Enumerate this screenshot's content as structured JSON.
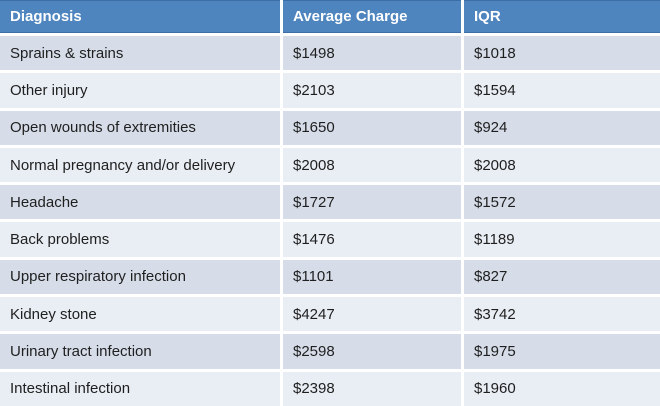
{
  "colors": {
    "header_bg": "#4e85bf",
    "header_text": "#ffffff",
    "row_band_dark": "#d6dde9",
    "row_band_light": "#e9edf4",
    "separator": "#ffffff",
    "cell_text": "#1f1f1f"
  },
  "header": {
    "columns": [
      "Diagnosis",
      "Average Charge",
      "IQR"
    ]
  },
  "rows": [
    {
      "diagnosis": "Sprains & strains",
      "average_charge": "$1498",
      "iqr": "$1018"
    },
    {
      "diagnosis": "Other injury",
      "average_charge": "$2103",
      "iqr": "$1594"
    },
    {
      "diagnosis": "Open wounds of extremities",
      "average_charge": "$1650",
      "iqr": "$924"
    },
    {
      "diagnosis": "Normal pregnancy and/or delivery",
      "average_charge": "$2008",
      "iqr": "$2008"
    },
    {
      "diagnosis": "Headache",
      "average_charge": "$1727",
      "iqr": "$1572"
    },
    {
      "diagnosis": "Back problems",
      "average_charge": "$1476",
      "iqr": "$1189"
    },
    {
      "diagnosis": "Upper respiratory infection",
      "average_charge": "$1101",
      "iqr": "$827"
    },
    {
      "diagnosis": "Kidney stone",
      "average_charge": "$4247",
      "iqr": "$3742"
    },
    {
      "diagnosis": "Urinary tract infection",
      "average_charge": "$2598",
      "iqr": "$1975"
    },
    {
      "diagnosis": "Intestinal infection",
      "average_charge": "$2398",
      "iqr": "$1960"
    }
  ],
  "chart_data": {
    "type": "table",
    "columns": [
      "Diagnosis",
      "Average Charge",
      "IQR"
    ],
    "rows": [
      [
        "Sprains & strains",
        "$1498",
        "$1018"
      ],
      [
        "Other injury",
        "$2103",
        "$1594"
      ],
      [
        "Open wounds of extremities",
        "$1650",
        "$924"
      ],
      [
        "Normal pregnancy and/or delivery",
        "$2008",
        "$2008"
      ],
      [
        "Headache",
        "$1727",
        "$1572"
      ],
      [
        "Back problems",
        "$1476",
        "$1189"
      ],
      [
        "Upper respiratory infection",
        "$1101",
        "$827"
      ],
      [
        "Kidney stone",
        "$4247",
        "$3742"
      ],
      [
        "Urinary tract infection",
        "$2598",
        "$1975"
      ],
      [
        "Intestinal infection",
        "$2398",
        "$1960"
      ]
    ]
  }
}
